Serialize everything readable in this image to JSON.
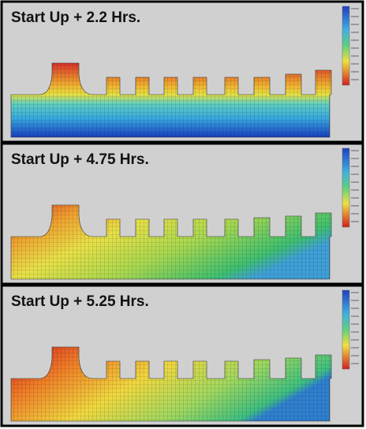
{
  "panels": [
    {
      "title": "Start Up + 2.2 Hrs."
    },
    {
      "title": "Start Up + 4.75 Hrs."
    },
    {
      "title": "Start Up + 5.25 Hrs."
    }
  ]
}
